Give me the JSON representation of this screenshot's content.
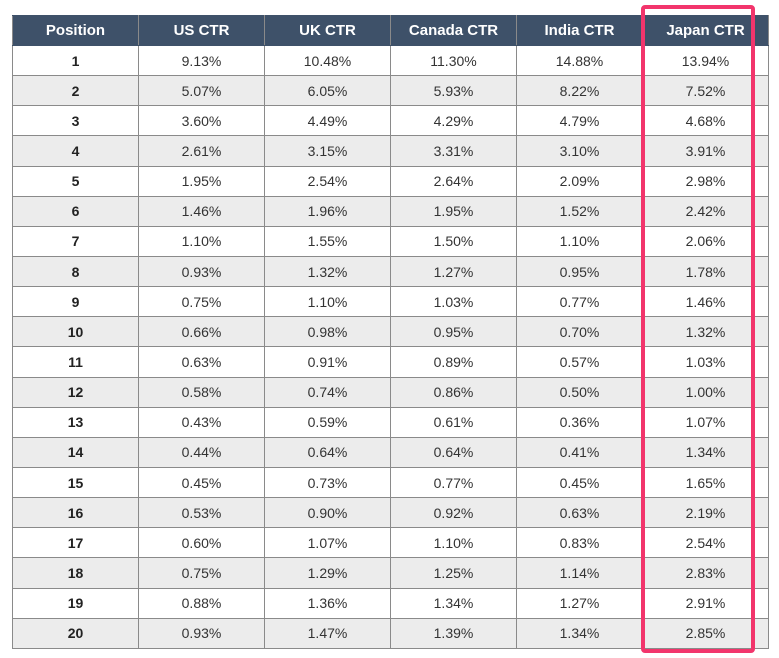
{
  "table": {
    "header": [
      "Position",
      "US CTR",
      "UK CTR",
      "Canada CTR",
      "India CTR",
      "Japan CTR"
    ],
    "rows": [
      [
        "1",
        "9.13%",
        "10.48%",
        "11.30%",
        "14.88%",
        "13.94%"
      ],
      [
        "2",
        "5.07%",
        "6.05%",
        "5.93%",
        "8.22%",
        "7.52%"
      ],
      [
        "3",
        "3.60%",
        "4.49%",
        "4.29%",
        "4.79%",
        "4.68%"
      ],
      [
        "4",
        "2.61%",
        "3.15%",
        "3.31%",
        "3.10%",
        "3.91%"
      ],
      [
        "5",
        "1.95%",
        "2.54%",
        "2.64%",
        "2.09%",
        "2.98%"
      ],
      [
        "6",
        "1.46%",
        "1.96%",
        "1.95%",
        "1.52%",
        "2.42%"
      ],
      [
        "7",
        "1.10%",
        "1.55%",
        "1.50%",
        "1.10%",
        "2.06%"
      ],
      [
        "8",
        "0.93%",
        "1.32%",
        "1.27%",
        "0.95%",
        "1.78%"
      ],
      [
        "9",
        "0.75%",
        "1.10%",
        "1.03%",
        "0.77%",
        "1.46%"
      ],
      [
        "10",
        "0.66%",
        "0.98%",
        "0.95%",
        "0.70%",
        "1.32%"
      ],
      [
        "11",
        "0.63%",
        "0.91%",
        "0.89%",
        "0.57%",
        "1.03%"
      ],
      [
        "12",
        "0.58%",
        "0.74%",
        "0.86%",
        "0.50%",
        "1.00%"
      ],
      [
        "13",
        "0.43%",
        "0.59%",
        "0.61%",
        "0.36%",
        "1.07%"
      ],
      [
        "14",
        "0.44%",
        "0.64%",
        "0.64%",
        "0.41%",
        "1.34%"
      ],
      [
        "15",
        "0.45%",
        "0.73%",
        "0.77%",
        "0.45%",
        "1.65%"
      ],
      [
        "16",
        "0.53%",
        "0.90%",
        "0.92%",
        "0.63%",
        "2.19%"
      ],
      [
        "17",
        "0.60%",
        "1.07%",
        "1.10%",
        "0.83%",
        "2.54%"
      ],
      [
        "18",
        "0.75%",
        "1.29%",
        "1.25%",
        "1.14%",
        "2.83%"
      ],
      [
        "19",
        "0.88%",
        "1.36%",
        "1.34%",
        "1.27%",
        "2.91%"
      ],
      [
        "20",
        "0.93%",
        "1.47%",
        "1.39%",
        "1.34%",
        "2.85%"
      ]
    ]
  }
}
